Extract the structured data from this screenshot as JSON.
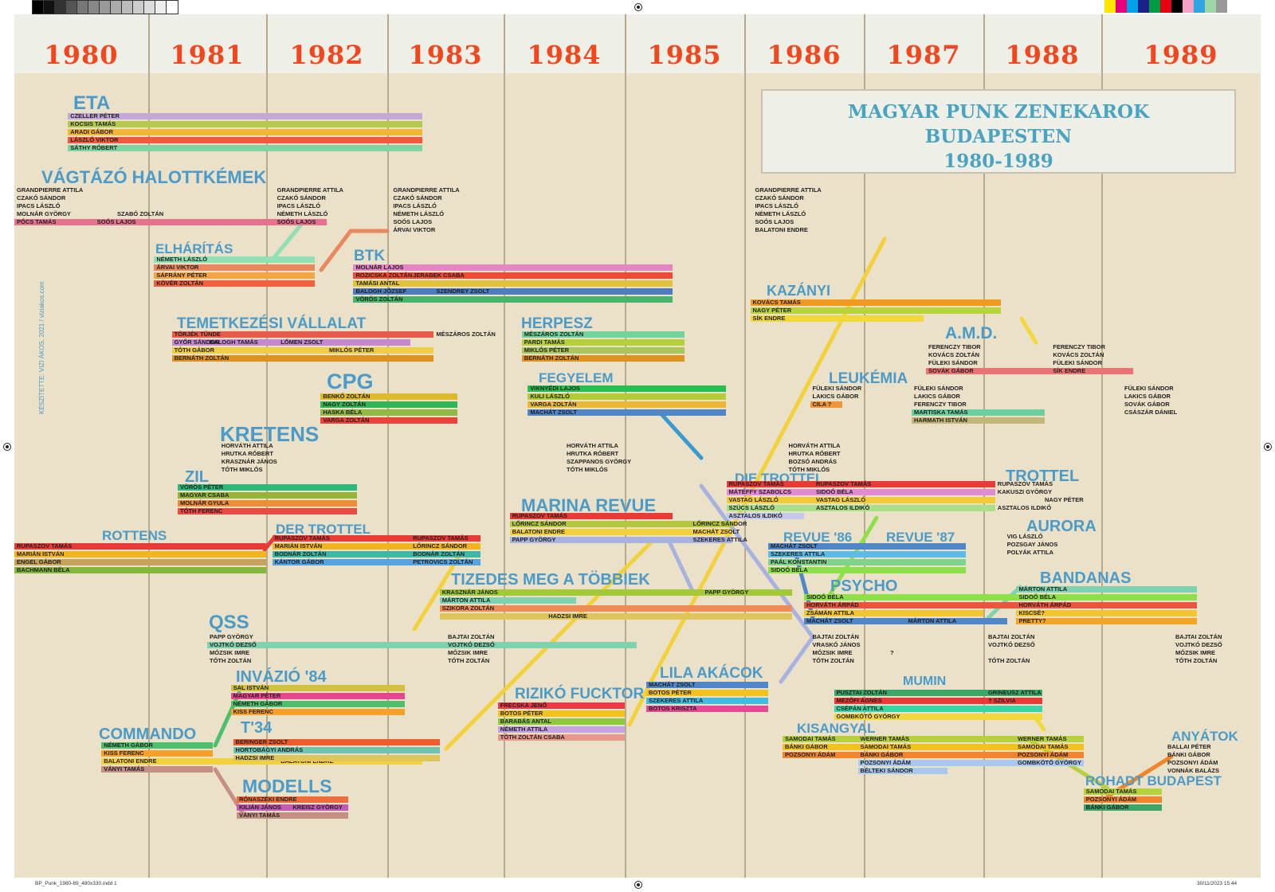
{
  "title": [
    "MAGYAR PUNK ZENEKAROK",
    "BUDAPESTEN",
    "1980-1989"
  ],
  "years": [
    "1980",
    "1981",
    "1982",
    "1983",
    "1984",
    "1985",
    "1986",
    "1987",
    "1988",
    "1989"
  ],
  "credit": "KÉSZÍTETTE: VIZI ÁKOS, 2021 / viziakos.com",
  "footer": {
    "left": "BP_Punk_1980-89_480x330.indd   1",
    "right": "30/11/2023   15:44"
  },
  "colors": {
    "background": "#ebe1c8",
    "year_band": "#eef0e7",
    "year_text": "#f2461f",
    "band_title": "#4a9bc9",
    "grid": "#b7aa8c"
  },
  "bands": [
    {
      "name": "ETA",
      "members": [
        {
          "label": "CZELLER PÉTER",
          "color": "#c3a8d8"
        },
        {
          "label": "KOCSIS TAMÁS",
          "color": "#b4c94d"
        },
        {
          "label": "ARADI GÁBOR",
          "color": "#f1b633"
        },
        {
          "label": "LÁSZLÓ VIKTOR",
          "color": "#f15a3a"
        },
        {
          "label": "SÁTHY RÓBERT",
          "color": "#7fd3a3"
        }
      ]
    },
    {
      "name": "VÁGTÁZÓ HALOTTKÉMEK",
      "members": [
        {
          "label": "GRANDPIERRE ATTILA",
          "color": "#e8382c",
          "more": [
            "GRANDPIERRE ATTILA",
            "GRANDPIERRE ATTILA",
            "GRANDPIERRE ATTILA"
          ]
        },
        {
          "label": "CZAKÓ SÁNDOR",
          "color": "#2ba5a0",
          "more": [
            "CZAKÓ SÁNDOR",
            "CZAKÓ SÁNDOR",
            "CZAKÓ SÁNDOR"
          ]
        },
        {
          "label": "IPACS LÁSZLÓ",
          "color": "#5dbb3d",
          "more": [
            "IPACS LÁSZLÓ",
            "IPACS LÁSZLÓ",
            "IPACS LÁSZLÓ"
          ]
        },
        {
          "label": "MOLNÁR GYÖRGY",
          "color": "#f3c31b",
          "more": [
            "SZABÓ ZOLTÁN",
            "NÉMETH LÁSZLÓ",
            "NÉMETH LÁSZLÓ",
            "NÉMETH LÁSZLÓ"
          ]
        },
        {
          "label": "PÓCS TAMÁS",
          "color": "#e6728f",
          "more": [
            "SOÓS LAJOS",
            "SOÓS LAJOS",
            "SOÓS LAJOS",
            "SOÓS LAJOS"
          ]
        },
        {
          "label": "",
          "color": "#e8885c",
          "more": [
            "ÁRVAI VIKTOR",
            "BALATONI ENDRE"
          ]
        }
      ]
    },
    {
      "name": "ELHÁRÍTÁS",
      "members": [
        {
          "label": "NÉMETH LÁSZLÓ",
          "color": "#8fe0b3"
        },
        {
          "label": "ÁRVAI VIKTOR",
          "color": "#e8885c"
        },
        {
          "label": "SÁFRÁNY PÉTER",
          "color": "#f4a542"
        },
        {
          "label": "KÖVÉR ZOLTÁN",
          "color": "#f1613f"
        }
      ]
    },
    {
      "name": "BTK",
      "members": [
        {
          "label": "MOLNÁR LAJOS",
          "color": "#e685c4"
        },
        {
          "label": "ROZICSKA ZOLTÁN",
          "color": "#ef4a34",
          "more": [
            "JERABEK CSABA"
          ]
        },
        {
          "label": "TAMÁSI ANTAL",
          "color": "#e1c23d"
        },
        {
          "label": "BALOGH JÓZSEF",
          "color": "#4d7dbf",
          "more": [
            "SZENDREY ZSOLT"
          ]
        },
        {
          "label": "VÖRÖS ZOLTÁN",
          "color": "#47b46b"
        }
      ]
    },
    {
      "name": "KAZÁNYI",
      "members": [
        {
          "label": "KOVÁCS TAMÁS",
          "color": "#f39a1e"
        },
        {
          "label": "NAGY PÉTER",
          "color": "#b6d437"
        },
        {
          "label": "SÍK ENDRE",
          "color": "#f3d83b"
        }
      ]
    },
    {
      "name": "A.M.D.",
      "members": [
        {
          "label": "FERENCZY TIBOR",
          "color": "#44c4e8",
          "more": [
            "FERENCZY TIBOR"
          ]
        },
        {
          "label": "KOVÁCS ZOLTÁN",
          "color": "#9c8adb",
          "more": [
            "KOVÁCS ZOLTÁN"
          ]
        },
        {
          "label": "FÜLEKI SÁNDOR",
          "color": "#b5d13e",
          "more": [
            "FÜLEKI SÁNDOR"
          ]
        },
        {
          "label": "SOVÁK GÁBOR",
          "color": "#ea7374",
          "more": [
            "SÍK ENDRE"
          ]
        }
      ]
    },
    {
      "name": "TEMETKEZÉSI VÁLLALAT",
      "members": [
        {
          "label": "TÖRJÉK TÜNDE",
          "color": "#ea5a4a",
          "more": [
            "MÉSZÁROS ZOLTÁN"
          ]
        },
        {
          "label": "GYŐR SÁNDOR",
          "color": "#c888cf",
          "more": [
            "BALOGH TAMÁS",
            "LŐMEN ZSOLT"
          ]
        },
        {
          "label": "TÓTH GÁBOR",
          "color": "#f0cd47",
          "more": [
            "MIKLÓS PÉTER"
          ]
        },
        {
          "label": "BERNÁTH ZOLTÁN",
          "color": "#e0921f"
        }
      ]
    },
    {
      "name": "HERPESZ",
      "members": [
        {
          "label": "MÉSZÁROS ZOLTÁN",
          "color": "#6fd39a"
        },
        {
          "label": "PARDI TAMÁS",
          "color": "#b6d039"
        },
        {
          "label": "MIKLÓS PÉTER",
          "color": "#a9c75b"
        },
        {
          "label": "BERNÁTH ZOLTÁN",
          "color": "#e0921f"
        }
      ]
    },
    {
      "name": "CPG",
      "members": [
        {
          "label": "BENKŐ ZOLTÁN",
          "color": "#e0b92a"
        },
        {
          "label": "NAGY ZOLTÁN",
          "color": "#2fb653"
        },
        {
          "label": "HASKA BÉLA",
          "color": "#90ba44"
        },
        {
          "label": "VARGA ZOLTÁN",
          "color": "#e9453d"
        }
      ]
    },
    {
      "name": "FEGYELEM",
      "members": [
        {
          "label": "VIKNYÉDI LAJOS",
          "color": "#26bf51"
        },
        {
          "label": "KULI LÁSZLÓ",
          "color": "#b4cc33"
        },
        {
          "label": "VARGA ZOLTÁN",
          "color": "#eab835"
        },
        {
          "label": "MACHÁT ZSOLT",
          "color": "#4e86c7"
        }
      ]
    },
    {
      "name": "LEUKÉMIA",
      "members": [
        {
          "label": "FÜLEKI SÁNDOR",
          "color": "#b5d13e",
          "more": [
            "FÜLEKI SÁNDOR",
            "FÜLEKI SÁNDOR"
          ]
        },
        {
          "label": "LAKICS GÁBOR",
          "color": "#f3c21d",
          "more": [
            "LAKICS GÁBOR",
            "LAKICS GÁBOR"
          ]
        },
        {
          "label": "CILA ?",
          "color": "#f29536",
          "more": [
            "FERENCZY TIBOR",
            "SOVÁK GÁBOR"
          ]
        },
        {
          "label": "",
          "color": "#6bcfa0",
          "more": [
            "MARTISKA TAMÁS",
            "CSÁSZÁR DÁNIEL"
          ]
        },
        {
          "label": "",
          "color": "#c4b579",
          "more": [
            "HARMATH ISTVÁN"
          ]
        }
      ]
    },
    {
      "name": "KRETENS",
      "members": [
        {
          "label": "HORVÁTH ATTILA",
          "color": "#3a9ad0",
          "more": [
            "HORVÁTH ATTILA",
            "HORVÁTH ATTILA"
          ]
        },
        {
          "label": "HRUTKA RÓBERT",
          "color": "#34a866",
          "more": [
            "HRUTKA RÓBERT",
            "HRUTKA RÓBERT"
          ]
        },
        {
          "label": "KRASZNÁR JÁNOS",
          "color": "#8dc63f",
          "more": [
            "SZAPPANOS GYÖRGY",
            "BOZSÓ ANDRÁS"
          ]
        },
        {
          "label": "TÓTH MIKLÓS",
          "color": "#f6a31b",
          "more": [
            "TÓTH MIKLÓS",
            "TÓTH MIKLÓS"
          ]
        }
      ]
    },
    {
      "name": "ZIL",
      "members": [
        {
          "label": "VÖRÖS PÉTER",
          "color": "#2fb87a"
        },
        {
          "label": "MAGYAR CSABA",
          "color": "#96b43a"
        },
        {
          "label": "MOLNÁR GYULA",
          "color": "#ee8d35"
        },
        {
          "label": "TÓTH FERENC",
          "color": "#ea4a42"
        }
      ]
    },
    {
      "name": "DIE TROTTEL",
      "members": [
        {
          "label": "RUPASZOV TAMÁS",
          "color": "#ea3a37",
          "more": [
            "RUPASZOV TAMÁS"
          ]
        },
        {
          "label": "MÁTÉFFY SZABOLCS",
          "color": "#e28bd2",
          "more": [
            "SIDOÓ BÉLA"
          ]
        },
        {
          "label": "VASTAG LÁSZLÓ",
          "color": "#f2cc36",
          "more": [
            "VASTAG LÁSZLÓ"
          ]
        },
        {
          "label": "SZÜCS LÁSZLÓ",
          "color": "#a9e088",
          "more": [
            "ASZTALOS ILDIKÓ"
          ]
        },
        {
          "label": "ASZTALOS ILDIKÓ",
          "color": "#c4c9ec"
        }
      ]
    },
    {
      "name": "TROTTEL",
      "members": [
        {
          "label": "RUPASZOV TAMÁS",
          "color": "#ea3a37"
        },
        {
          "label": "KAKUSZI GYÖRGY",
          "color": "#9cd12f"
        },
        {
          "label": "NAGY PÉTER",
          "color": "#b6d437"
        },
        {
          "label": "ASZTALOS ILDIKÓ",
          "color": "#c4c9ec"
        }
      ]
    },
    {
      "name": "MARINA REVUE",
      "members": [
        {
          "label": "RUPASZOV TAMÁS",
          "color": "#ea3a37"
        },
        {
          "label": "LŐRINCZ SÁNDOR",
          "color": "#b5c83b",
          "more": [
            "LŐRINCZ SÁNDOR"
          ]
        },
        {
          "label": "BALATONI ENDRE",
          "color": "#f3d13a",
          "more": [
            "MACHÁT ZSOLT"
          ]
        },
        {
          "label": "PAPP GYÖRGY",
          "color": "#a8b2df",
          "more": [
            "SZEKERES ATTILA"
          ]
        }
      ]
    },
    {
      "name": "ROTTENS",
      "members": [
        {
          "label": "RUPASZOV TAMÁS",
          "color": "#ea3a37"
        },
        {
          "label": "MARIÁN ISTVÁN",
          "color": "#f3b51f"
        },
        {
          "label": "ENGEL GÁBOR",
          "color": "#c5a35b"
        },
        {
          "label": "BACHMANN BÉLA",
          "color": "#84b73c"
        }
      ]
    },
    {
      "name": "DER TROTTEL",
      "members": [
        {
          "label": "RUPASZOV TAMÁS",
          "color": "#ea3a37",
          "more": [
            "RUPASZOV TAMÁS"
          ]
        },
        {
          "label": "MARIÁN ISTVÁN",
          "color": "#f3b51f",
          "more": [
            "LŐRINCZ SÁNDOR"
          ]
        },
        {
          "label": "BODNÁR ZOLTÁN",
          "color": "#3bb9a5",
          "more": [
            "BODNÁR ZOLTÁN"
          ]
        },
        {
          "label": "KÁNTOR GÁBOR",
          "color": "#56a3e0",
          "more": [
            "PETROVICS ZOLTÁN"
          ]
        }
      ]
    },
    {
      "name": "REVUE '86",
      "members": [
        {
          "label": "MACHÁT ZSOLT",
          "color": "#4e86c7"
        },
        {
          "label": "SZEKERES ATTILA",
          "color": "#5dbbe7"
        },
        {
          "label": "PAÁL KONSTANTIN",
          "color": "#7fd38c"
        },
        {
          "label": "SIDOÓ BÉLA",
          "color": "#8ee04a"
        }
      ]
    },
    {
      "name": "REVUE '87",
      "members": []
    },
    {
      "name": "AURORA",
      "members": [
        {
          "label": "VIG LÁSZLÓ",
          "color": "#2fb64f"
        },
        {
          "label": "POZSGAY JÁNOS",
          "color": "#c8d046"
        },
        {
          "label": "POLYÁK ATTILA",
          "color": "#f2b520"
        }
      ]
    },
    {
      "name": "TIZEDES MEG A TÖBBIEK",
      "members": [
        {
          "label": "KRASZNÁR JÁNOS",
          "color": "#a2c937",
          "more": [
            "PAPP GYÖRGY"
          ]
        },
        {
          "label": "MÁRTON ATTILA",
          "color": "#7fd2b0"
        },
        {
          "label": "SZIKORA ZOLTÁN",
          "color": "#ef8c55"
        },
        {
          "label": "",
          "color": "#dfc65c",
          "more": [
            "HADZSI IMRE"
          ]
        }
      ]
    },
    {
      "name": "PSYCHO",
      "members": [
        {
          "label": "SIDOÓ BÉLA",
          "color": "#8ee04a"
        },
        {
          "label": "HORVÁTH ÁRPÁD",
          "color": "#ea553d"
        },
        {
          "label": "ZSÁMÁN ATTILA",
          "color": "#f3c531"
        },
        {
          "label": "MACHÁT ZSOLT",
          "color": "#4e86c7",
          "more": [
            "MÁRTON ATTILA"
          ]
        }
      ]
    },
    {
      "name": "BANDANAS",
      "members": [
        {
          "label": "MÁRTON ATTILA",
          "color": "#7fd2b0"
        },
        {
          "label": "SIDOÓ BÉLA",
          "color": "#8ee04a"
        },
        {
          "label": "HORVÁTH ÁRPÁD",
          "color": "#ea553d"
        },
        {
          "label": "KISCSÉ?",
          "color": "#f3c531"
        },
        {
          "label": "PRETTY?",
          "color": "#f4a521"
        }
      ]
    },
    {
      "name": "QSS",
      "members": [
        {
          "label": "PAPP GYÖRGY",
          "color": "#a8b2df",
          "more": [
            "BAJTAI ZOLTÁN",
            "BAJTAI ZOLTÁN",
            "BAJTAI ZOLTÁN",
            "BAJTAI ZOLTÁN"
          ]
        },
        {
          "label": "VOJTKÓ DEZSŐ",
          "color": "#7fd2b0",
          "more": [
            "VOJTKÓ DEZSŐ",
            "VRASKÓ JÁNOS",
            "VOJTKÓ DEZSŐ",
            "VOJTKÓ DEZSŐ"
          ]
        },
        {
          "label": "MÓZSIK IMRE",
          "color": "#f2cb34",
          "more": [
            "MÓZSIK IMRE",
            "MÓZSIK IMRE",
            "?",
            "MÓZSIK IMRE"
          ]
        },
        {
          "label": "TÓTH ZOLTÁN",
          "color": "#a9c84b",
          "more": [
            "TÓTH ZOLTÁN",
            "TÓTH ZOLTÁN",
            "TÓTH ZOLTÁN",
            "TÓTH ZOLTÁN"
          ]
        }
      ]
    },
    {
      "name": "INVÁZIÓ '84",
      "members": [
        {
          "label": "SAL ISTVÁN",
          "color": "#d1c13f"
        },
        {
          "label": "MAGYAR PÉTER",
          "color": "#e6458f"
        },
        {
          "label": "NÉMETH GÁBOR",
          "color": "#4ec06d"
        },
        {
          "label": "KISS FERENC",
          "color": "#f6a12a"
        }
      ]
    },
    {
      "name": "LILA AKÁCOK",
      "members": [
        {
          "label": "MACHÁT ZSOLT",
          "color": "#4e86c7"
        },
        {
          "label": "BOTOS PÉTER",
          "color": "#f3c21d"
        },
        {
          "label": "SZEKERES ATTILA",
          "color": "#40bce0"
        },
        {
          "label": "BOTOS KRISZTA",
          "color": "#e64a97"
        }
      ]
    },
    {
      "name": "MUMIN",
      "members": [
        {
          "label": "PUSZTAI ZOLTÁN",
          "color": "#3aa867",
          "more": [
            "GRINEUSZ ATTILA"
          ]
        },
        {
          "label": "MEZŐFI ÁGNES",
          "color": "#ea3a37",
          "more": [
            "? SZILVIA"
          ]
        },
        {
          "label": "CSÉPÁN ATTILA",
          "color": "#38d6a7"
        },
        {
          "label": "GOMBKÖTŐ GYÖRGY",
          "color": "#f3d83b"
        }
      ]
    },
    {
      "name": "RIZIKÓ FUCKTOR",
      "members": [
        {
          "label": "FRECSKA JENŐ",
          "color": "#ea3a47"
        },
        {
          "label": "BOTOS PÉTER",
          "color": "#f3c21d"
        },
        {
          "label": "BARABÁS ANTAL",
          "color": "#8dc83f"
        },
        {
          "label": "NÉMETH ATTILA",
          "color": "#c6a4e2"
        },
        {
          "label": "TÓTH ZOLTÁN CSABA",
          "color": "#e6988a"
        }
      ]
    },
    {
      "name": "COMMANDO",
      "members": [
        {
          "label": "NÉMETH GÁBOR",
          "color": "#4ec06d"
        },
        {
          "label": "KISS FERENC",
          "color": "#f6a12a"
        },
        {
          "label": "BALATONI ENDRE",
          "color": "#f3d13a",
          "more": [
            "BALATONI ENDRE"
          ]
        },
        {
          "label": "VÁNYI TAMÁS",
          "color": "#c58f84"
        }
      ]
    },
    {
      "name": "T'34",
      "members": [
        {
          "label": "BERINGER ZSOLT",
          "color": "#ef5c2a"
        },
        {
          "label": "HORTOBÁGYI ANDRÁS",
          "color": "#6fc4b1"
        },
        {
          "label": "HADZSI IMRE",
          "color": "#dfc65c"
        }
      ]
    },
    {
      "name": "MODELLS",
      "members": [
        {
          "label": "RÓNASZÉKI ENDRE",
          "color": "#ee6d3b"
        },
        {
          "label": "KILIÁN JÁNOS",
          "color": "#c45ab5",
          "more": [
            "KREISZ GYÖRGY"
          ]
        },
        {
          "label": "VÁNYI TAMÁS",
          "color": "#c58f84"
        }
      ]
    },
    {
      "name": "KISANGYAL",
      "members": [
        {
          "label": "SAMODAI TAMÁS",
          "color": "#b5d13e",
          "more": [
            "WERNER TAMÁS",
            "WERNER TAMÁS"
          ]
        },
        {
          "label": "BÁNKI GÁBOR",
          "color": "#f3c21d",
          "more": [
            "SAMODAI TAMÁS",
            "SAMODAI TAMÁS"
          ]
        },
        {
          "label": "POZSONYI ÁDÁM",
          "color": "#f2852c",
          "more": [
            "BÁNKI GÁBOR",
            "POZSONYI ÁDÁM"
          ]
        },
        {
          "label": "",
          "color": "#a8c8ee",
          "more": [
            "POZSONYI ÁDÁM",
            "GOMBKÖTŐ GYÖRGY"
          ]
        },
        {
          "label": "",
          "color": "#a8c8ee",
          "more": [
            "BÉLTEKI SÁNDOR"
          ]
        }
      ]
    },
    {
      "name": "ROHADT BUDAPEST",
      "members": [
        {
          "label": "SAMODAI TAMÁS",
          "color": "#b5d13e"
        },
        {
          "label": "POZSONYI ÁDÁM",
          "color": "#f2852c"
        },
        {
          "label": "BÁNKI GÁBOR",
          "color": "#3fa468"
        }
      ]
    },
    {
      "name": "ANYÁTOK",
      "members": [
        {
          "label": "BALLAI PÉTER",
          "color": "#ea3a37"
        },
        {
          "label": "BÁNKI GÁBOR",
          "color": "#3fa468"
        },
        {
          "label": "POZSONYI ÁDÁM",
          "color": "#f2852c"
        },
        {
          "label": "VONNÁK BALÁZS",
          "color": "#7fe0c4"
        }
      ]
    }
  ]
}
